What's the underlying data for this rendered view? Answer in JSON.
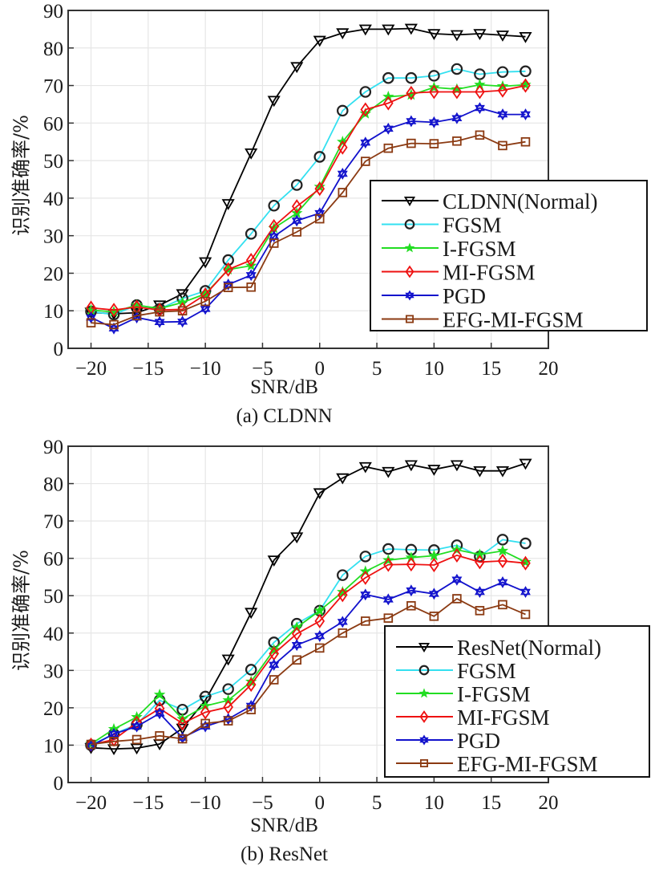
{
  "chart_data": [
    {
      "id": "a",
      "type": "line",
      "caption": "(a) CLDNN",
      "xlabel": "SNR/dB",
      "ylabel": "识别准确率/%",
      "xlim": [
        -22,
        20
      ],
      "ylim": [
        0,
        90
      ],
      "xticks": [
        -20,
        -15,
        -10,
        -5,
        0,
        5,
        10,
        15,
        20
      ],
      "xtick_labels": [
        "−20",
        "−15",
        "−10",
        "−5",
        "0",
        "5",
        "10",
        "15",
        "20"
      ],
      "yticks": [
        0,
        10,
        20,
        30,
        40,
        50,
        60,
        70,
        80,
        90
      ],
      "ytick_labels": [
        "0",
        "10",
        "20",
        "30",
        "40",
        "50",
        "60",
        "70",
        "80",
        "90"
      ],
      "grid": true,
      "legend_position": "lower-right",
      "x": [
        -20,
        -18,
        -16,
        -14,
        -12,
        -10,
        -8,
        -6,
        -4,
        -2,
        0,
        2,
        4,
        6,
        8,
        10,
        12,
        14,
        16,
        18
      ],
      "series": [
        {
          "name": "CLDNN(Normal)",
          "color": "#000000",
          "marker": "triangle-down",
          "marker_color": "#000000",
          "values": [
            9.6,
            9.2,
            9.5,
            11.5,
            14.5,
            23,
            38.5,
            52,
            66,
            75,
            82,
            84,
            85,
            85,
            85.2,
            83.8,
            83.5,
            83.8,
            83.4,
            83
          ]
        },
        {
          "name": "FGSM",
          "color": "#33e0f0",
          "marker": "circle",
          "marker_color": "#222222",
          "values": [
            9.8,
            9.0,
            11.5,
            10.5,
            13.3,
            15.3,
            23.5,
            30.5,
            38,
            43.5,
            51,
            63.3,
            68.3,
            72,
            72,
            72.6,
            74.4,
            73,
            73.6,
            73.8
          ]
        },
        {
          "name": "I-FGSM",
          "color": "#22dd22",
          "marker": "star",
          "marker_color": "#22dd22",
          "values": [
            10.2,
            9.7,
            11.5,
            10.6,
            12.2,
            14.5,
            21,
            22,
            32,
            36,
            43,
            55,
            62.5,
            67,
            67.5,
            69.5,
            69,
            70.2,
            69.8,
            70.2
          ]
        },
        {
          "name": "MI-FGSM",
          "color": "#ee1111",
          "marker": "diamond",
          "marker_color": "#ee1111",
          "values": [
            10.8,
            10.2,
            11.0,
            10.2,
            10.4,
            14.3,
            21,
            23.5,
            32.5,
            37.8,
            42.5,
            53.5,
            63.6,
            65.3,
            68,
            68.3,
            68.3,
            68.3,
            68.7,
            70
          ]
        },
        {
          "name": "PGD",
          "color": "#1111cc",
          "marker": "hexagram",
          "marker_color": "#1111cc",
          "values": [
            8.2,
            5.3,
            8.2,
            7.0,
            7.1,
            10.5,
            17,
            19.5,
            29.8,
            34,
            36,
            46.5,
            54.8,
            58.5,
            60.5,
            60.2,
            61.3,
            64,
            62.3,
            62.3
          ]
        },
        {
          "name": "EFG-MI-FGSM",
          "color": "#8b3a12",
          "marker": "square",
          "marker_color": "#8b3a12",
          "values": [
            6.8,
            6.3,
            8.7,
            9.7,
            10.0,
            12.5,
            16.2,
            16.3,
            28,
            31,
            34.5,
            41.5,
            49.8,
            53.3,
            54.6,
            54.5,
            55.2,
            56.8,
            54,
            55
          ]
        }
      ]
    },
    {
      "id": "b",
      "type": "line",
      "caption": "(b) ResNet",
      "xlabel": "SNR/dB",
      "ylabel": "识别准确率/%",
      "xlim": [
        -22,
        20
      ],
      "ylim": [
        0,
        90
      ],
      "xticks": [
        -20,
        -15,
        -10,
        -5,
        0,
        5,
        10,
        15,
        20
      ],
      "xtick_labels": [
        "−20",
        "−15",
        "−10",
        "−5",
        "0",
        "5",
        "10",
        "15",
        "20"
      ],
      "yticks": [
        0,
        10,
        20,
        30,
        40,
        50,
        60,
        70,
        80,
        90
      ],
      "ytick_labels": [
        "0",
        "10",
        "20",
        "30",
        "40",
        "50",
        "60",
        "70",
        "80",
        "90"
      ],
      "grid": true,
      "legend_position": "lower-right",
      "x": [
        -20,
        -18,
        -16,
        -14,
        -12,
        -10,
        -8,
        -6,
        -4,
        -2,
        0,
        2,
        4,
        6,
        8,
        10,
        12,
        14,
        16,
        18
      ],
      "series": [
        {
          "name": "ResNet(Normal)",
          "color": "#000000",
          "marker": "triangle-down",
          "marker_color": "#000000",
          "values": [
            9.3,
            9,
            9.2,
            10.3,
            14.5,
            22,
            33,
            45.5,
            59.5,
            65.7,
            77.5,
            81.5,
            84.5,
            83.2,
            85,
            83.8,
            85,
            83.4,
            83.4,
            85.4
          ]
        },
        {
          "name": "FGSM",
          "color": "#33e0f0",
          "marker": "circle",
          "marker_color": "#222222",
          "values": [
            10,
            13,
            15.5,
            22,
            19.5,
            23,
            25,
            30.2,
            37.5,
            42.5,
            46,
            55.5,
            60.5,
            62.5,
            62.3,
            62.2,
            63.5,
            60.5,
            65,
            64
          ]
        },
        {
          "name": "I-FGSM",
          "color": "#22dd22",
          "marker": "star",
          "marker_color": "#22dd22",
          "values": [
            10.3,
            14.3,
            17.5,
            23.5,
            17,
            20.5,
            22,
            27,
            35.5,
            41.5,
            46,
            51,
            56.5,
            59.5,
            60.2,
            60.7,
            62.3,
            61,
            62,
            59
          ]
        },
        {
          "name": "MI-FGSM",
          "color": "#ee1111",
          "marker": "diamond",
          "marker_color": "#ee1111",
          "values": [
            10.1,
            11.5,
            16,
            19.8,
            15.8,
            18.8,
            20.2,
            26.2,
            34.5,
            39.8,
            43.2,
            50.2,
            54.8,
            58.3,
            58.4,
            58.2,
            60.8,
            59,
            59.3,
            58.7
          ]
        },
        {
          "name": "PGD",
          "color": "#1111cc",
          "marker": "hexagram",
          "marker_color": "#1111cc",
          "values": [
            9.8,
            13,
            15,
            18.5,
            12,
            15,
            17,
            20.5,
            31.5,
            36.8,
            39.2,
            43,
            50.3,
            49,
            51.4,
            50.5,
            54.3,
            51,
            53.6,
            51
          ]
        },
        {
          "name": "EFG-MI-FGSM",
          "color": "#8b3a12",
          "marker": "square",
          "marker_color": "#8b3a12",
          "values": [
            10.2,
            11,
            11.5,
            12.5,
            11.7,
            15.8,
            16.5,
            19.5,
            27.5,
            32.8,
            36,
            40,
            43.2,
            44,
            47.3,
            44.5,
            49.2,
            46,
            47.6,
            45
          ]
        }
      ]
    }
  ]
}
